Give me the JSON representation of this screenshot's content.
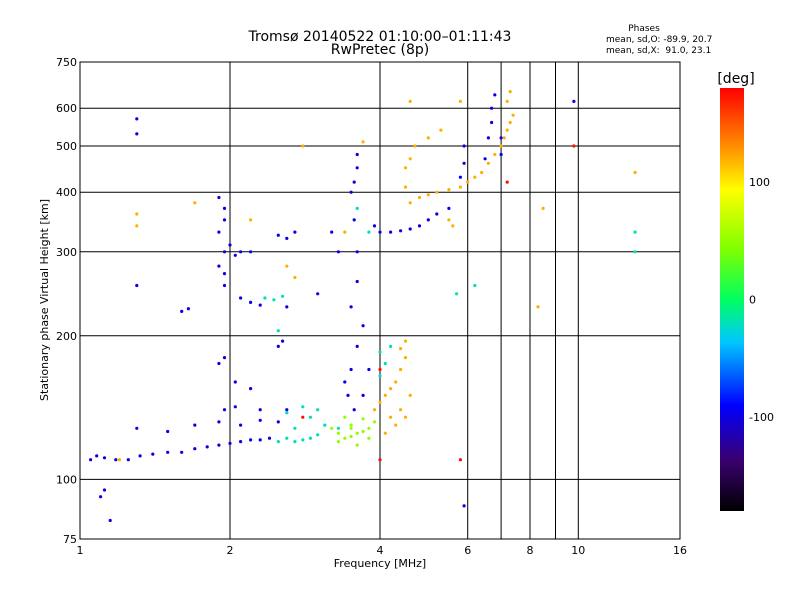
{
  "chart_data": {
    "type": "scatter",
    "title": "Tromsø 20140522 01:10:00–01:11:43",
    "subtitle": "RwPretec (8p)",
    "xlabel": "Frequency [MHz]",
    "ylabel": "Stationary phase Virtual Height [km]",
    "x_scale": "log",
    "y_scale": "log",
    "xlim": [
      1,
      16
    ],
    "ylim": [
      75,
      750
    ],
    "x_ticks": [
      1,
      2,
      4,
      6,
      8,
      10,
      16
    ],
    "x_ticklabels": [
      "1",
      "2",
      "4",
      "6",
      "8",
      "10",
      "16"
    ],
    "x_minor_gridlines": [
      7,
      9
    ],
    "y_ticks": [
      75,
      100,
      200,
      300,
      400,
      500,
      600,
      750
    ],
    "y_ticklabels": [
      "75",
      "100",
      "200",
      "300",
      "400",
      "500",
      "600",
      "750"
    ],
    "grid": true,
    "phase_legend": {
      "title": "Phases",
      "line_O": "mean, sd,O: -89.9, 20.7",
      "line_X": "mean, sd,X:  91.0, 23.1"
    },
    "colorbar": {
      "label": "[deg]",
      "min": -180,
      "max": 180,
      "ticks": [
        100,
        0,
        -100
      ],
      "ticklabels": [
        "100",
        "0",
        "-100"
      ]
    },
    "series": [
      {
        "phase": -100,
        "points": [
          [
            1.05,
            110
          ],
          [
            1.08,
            112
          ],
          [
            1.12,
            111
          ],
          [
            1.18,
            110
          ],
          [
            1.25,
            110
          ],
          [
            1.32,
            112
          ],
          [
            1.4,
            113
          ],
          [
            1.5,
            114
          ],
          [
            1.6,
            114
          ],
          [
            1.7,
            116
          ],
          [
            1.8,
            117
          ],
          [
            1.9,
            118
          ],
          [
            2.0,
            119
          ],
          [
            2.1,
            120
          ],
          [
            2.2,
            121
          ],
          [
            2.3,
            121
          ],
          [
            2.4,
            122
          ],
          [
            1.3,
            128
          ],
          [
            1.5,
            126
          ],
          [
            1.7,
            130
          ],
          [
            1.9,
            132
          ],
          [
            2.1,
            130
          ],
          [
            2.3,
            133
          ],
          [
            2.5,
            132
          ],
          [
            1.95,
            140
          ],
          [
            2.05,
            142
          ],
          [
            2.3,
            140
          ],
          [
            2.6,
            140
          ],
          [
            1.9,
            330
          ],
          [
            1.95,
            350
          ],
          [
            1.95,
            370
          ],
          [
            1.9,
            390
          ],
          [
            1.95,
            300
          ],
          [
            2.0,
            310
          ],
          [
            2.05,
            295
          ],
          [
            2.1,
            300
          ],
          [
            2.2,
            300
          ],
          [
            1.9,
            280
          ],
          [
            1.95,
            270
          ],
          [
            1.95,
            255
          ],
          [
            2.5,
            325
          ],
          [
            2.6,
            320
          ],
          [
            2.7,
            330
          ],
          [
            2.1,
            240
          ],
          [
            2.2,
            235
          ],
          [
            2.3,
            232
          ],
          [
            2.6,
            230
          ],
          [
            3.0,
            245
          ],
          [
            2.5,
            190
          ],
          [
            2.55,
            195
          ],
          [
            1.6,
            225
          ],
          [
            1.65,
            228
          ],
          [
            1.9,
            175
          ],
          [
            1.95,
            180
          ],
          [
            2.05,
            160
          ],
          [
            2.2,
            155
          ],
          [
            3.5,
            400
          ],
          [
            3.55,
            420
          ],
          [
            3.6,
            450
          ],
          [
            3.6,
            480
          ],
          [
            3.55,
            350
          ],
          [
            3.6,
            300
          ],
          [
            3.6,
            260
          ],
          [
            3.5,
            230
          ],
          [
            3.7,
            210
          ],
          [
            3.6,
            190
          ],
          [
            3.5,
            170
          ],
          [
            3.4,
            160
          ],
          [
            3.45,
            150
          ],
          [
            3.55,
            140
          ],
          [
            3.7,
            150
          ],
          [
            3.8,
            170
          ],
          [
            3.9,
            340
          ],
          [
            4.0,
            330
          ],
          [
            4.2,
            330
          ],
          [
            4.4,
            332
          ],
          [
            4.6,
            335
          ],
          [
            4.8,
            340
          ],
          [
            5.0,
            350
          ],
          [
            5.2,
            360
          ],
          [
            5.5,
            370
          ],
          [
            5.8,
            430
          ],
          [
            5.9,
            460
          ],
          [
            5.9,
            500
          ],
          [
            6.5,
            470
          ],
          [
            6.6,
            520
          ],
          [
            6.7,
            560
          ],
          [
            6.7,
            600
          ],
          [
            6.8,
            640
          ],
          [
            7.0,
            520
          ],
          [
            7.0,
            480
          ],
          [
            1.3,
            255
          ],
          [
            1.3,
            530
          ],
          [
            1.3,
            570
          ],
          [
            1.15,
            82
          ],
          [
            5.9,
            88
          ],
          [
            3.2,
            330
          ],
          [
            3.3,
            300
          ],
          [
            1.1,
            92
          ],
          [
            1.12,
            95
          ],
          [
            9.8,
            620
          ]
        ]
      },
      {
        "phase": -20,
        "points": [
          [
            2.5,
            120
          ],
          [
            2.6,
            122
          ],
          [
            2.7,
            120
          ],
          [
            2.8,
            121
          ],
          [
            2.9,
            122
          ],
          [
            3.0,
            124
          ],
          [
            2.7,
            128
          ],
          [
            2.9,
            135
          ],
          [
            3.1,
            130
          ],
          [
            3.3,
            128
          ],
          [
            2.6,
            138
          ],
          [
            2.8,
            142
          ],
          [
            3.0,
            140
          ],
          [
            2.35,
            240
          ],
          [
            2.45,
            238
          ],
          [
            2.55,
            242
          ],
          [
            2.5,
            205
          ],
          [
            3.6,
            370
          ],
          [
            3.8,
            330
          ],
          [
            4.0,
            185
          ],
          [
            4.1,
            175
          ],
          [
            4.2,
            190
          ],
          [
            4.0,
            165
          ],
          [
            13.0,
            300
          ],
          [
            13.0,
            330
          ],
          [
            5.7,
            245
          ],
          [
            6.2,
            255
          ]
        ]
      },
      {
        "phase": 50,
        "points": [
          [
            3.3,
            120
          ],
          [
            3.4,
            122
          ],
          [
            3.5,
            123
          ],
          [
            3.6,
            125
          ],
          [
            3.7,
            126
          ],
          [
            3.8,
            128
          ],
          [
            3.5,
            130
          ],
          [
            3.7,
            134
          ],
          [
            3.9,
            132
          ],
          [
            3.6,
            118
          ],
          [
            3.2,
            128
          ],
          [
            3.4,
            135
          ],
          [
            3.5,
            128
          ],
          [
            3.3,
            125
          ],
          [
            3.8,
            122
          ]
        ]
      },
      {
        "phase": 120,
        "points": [
          [
            3.9,
            140
          ],
          [
            4.0,
            145
          ],
          [
            4.1,
            150
          ],
          [
            4.2,
            155
          ],
          [
            4.3,
            160
          ],
          [
            4.4,
            170
          ],
          [
            4.5,
            180
          ],
          [
            4.4,
            140
          ],
          [
            4.3,
            130
          ],
          [
            4.5,
            135
          ],
          [
            4.6,
            150
          ],
          [
            4.1,
            125
          ],
          [
            4.2,
            135
          ],
          [
            4.4,
            188
          ],
          [
            4.5,
            195
          ],
          [
            4.6,
            380
          ],
          [
            4.8,
            390
          ],
          [
            5.0,
            395
          ],
          [
            5.2,
            400
          ],
          [
            5.5,
            405
          ],
          [
            5.8,
            410
          ],
          [
            6.0,
            420
          ],
          [
            6.2,
            430
          ],
          [
            6.4,
            440
          ],
          [
            6.6,
            460
          ],
          [
            6.8,
            480
          ],
          [
            7.0,
            500
          ],
          [
            7.1,
            520
          ],
          [
            7.2,
            540
          ],
          [
            7.3,
            560
          ],
          [
            7.4,
            580
          ],
          [
            4.5,
            450
          ],
          [
            4.6,
            470
          ],
          [
            4.7,
            500
          ],
          [
            5.0,
            520
          ],
          [
            5.3,
            540
          ],
          [
            4.5,
            410
          ],
          [
            5.5,
            350
          ],
          [
            5.6,
            340
          ],
          [
            7.2,
            620
          ],
          [
            7.3,
            650
          ],
          [
            2.8,
            500
          ],
          [
            1.3,
            360
          ],
          [
            1.3,
            340
          ],
          [
            1.7,
            380
          ],
          [
            2.2,
            350
          ],
          [
            2.6,
            280
          ],
          [
            2.7,
            265
          ],
          [
            3.7,
            510
          ],
          [
            4.6,
            620
          ],
          [
            5.8,
            620
          ],
          [
            3.4,
            330
          ],
          [
            13.0,
            440
          ],
          [
            8.5,
            370
          ],
          [
            8.3,
            230
          ],
          [
            1.2,
            110
          ]
        ]
      },
      {
        "phase": 175,
        "points": [
          [
            9.8,
            500
          ],
          [
            4.0,
            110
          ],
          [
            5.8,
            110
          ],
          [
            4.0,
            170
          ],
          [
            7.2,
            420
          ],
          [
            2.8,
            135
          ]
        ]
      }
    ]
  }
}
